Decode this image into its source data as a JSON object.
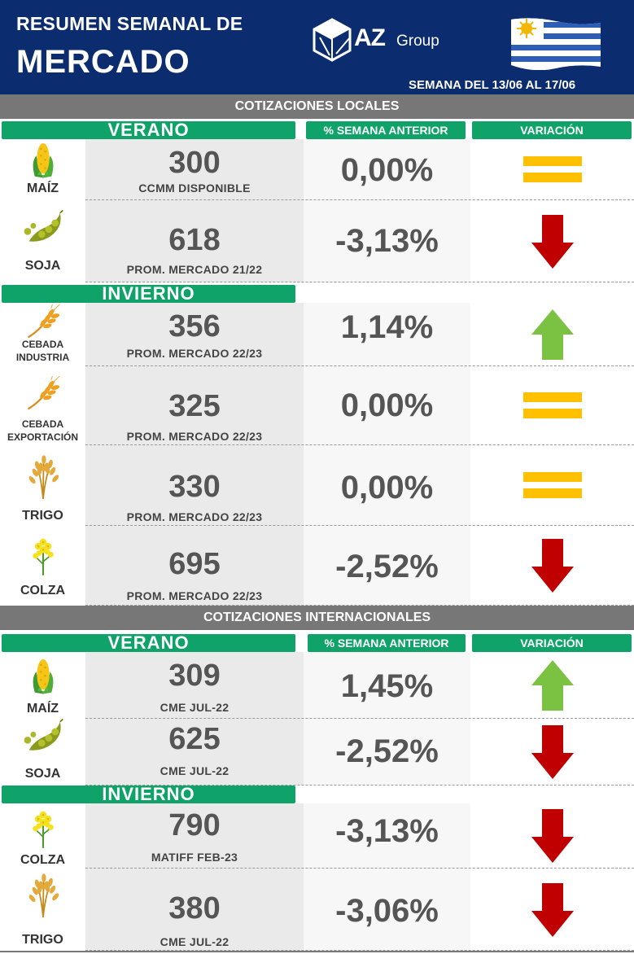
{
  "header": {
    "title_line1": "RESUMEN SEMANAL DE",
    "title_line2": "MERCADO",
    "logo_az": "AZ",
    "logo_group": "Group",
    "week": "SEMANA DEL  13/06 AL 17/06",
    "flag_icon": "uruguay-flag-icon"
  },
  "colors": {
    "navy": "#0b2c6f",
    "green": "#0fa36a",
    "gray_bar": "#777777",
    "up": "#7cc242",
    "down": "#c00000",
    "equal": "#ffc000"
  },
  "local": {
    "section_title": "COTIZACIONES LOCALES",
    "summer_label": "VERANO",
    "winter_label": "INVIERNO",
    "col_pct": "% SEMANA ANTERIOR",
    "col_var": "VARIACIÓN",
    "rows": [
      {
        "crop": "MAÍZ",
        "crop_line2": "",
        "icon": "corn-icon",
        "price": "300",
        "ref": "CCMM DISPONIBLE",
        "pct": "0,00%",
        "trend": "equal"
      },
      {
        "crop": "SOJA",
        "crop_line2": "",
        "icon": "soybean-icon",
        "price": "618",
        "ref": "PROM. MERCADO 21/22",
        "pct": "-3,13%",
        "trend": "down"
      },
      {
        "crop": "CEBADA",
        "crop_line2": "INDUSTRIA",
        "icon": "barley-icon",
        "price": "356",
        "ref": "PROM. MERCADO 22/23",
        "pct": "1,14%",
        "trend": "up"
      },
      {
        "crop": "CEBADA",
        "crop_line2": "EXPORTACIÓN",
        "icon": "barley-icon",
        "price": "325",
        "ref": "PROM. MERCADO 22/23",
        "pct": "0,00%",
        "trend": "equal"
      },
      {
        "crop": "TRIGO",
        "crop_line2": "",
        "icon": "wheat-icon",
        "price": "330",
        "ref": "PROM. MERCADO 22/23",
        "pct": "0,00%",
        "trend": "equal"
      },
      {
        "crop": "COLZA",
        "crop_line2": "",
        "icon": "canola-icon",
        "price": "695",
        "ref": "PROM. MERCADO 22/23",
        "pct": "-2,52%",
        "trend": "down"
      }
    ]
  },
  "intl": {
    "section_title": "COTIZACIONES INTERNACIONALES",
    "summer_label": "VERANO",
    "winter_label": "INVIERNO",
    "col_pct": "% SEMANA ANTERIOR",
    "col_var": "VARIACIÓN",
    "rows": [
      {
        "crop": "MAÍZ",
        "crop_line2": "",
        "icon": "corn-icon",
        "price": "309",
        "ref": "CME JUL-22",
        "pct": "1,45%",
        "trend": "up"
      },
      {
        "crop": "SOJA",
        "crop_line2": "",
        "icon": "soybean-icon",
        "price": "625",
        "ref": "CME JUL-22",
        "pct": "-2,52%",
        "trend": "down"
      },
      {
        "crop": "COLZA",
        "crop_line2": "",
        "icon": "canola-icon",
        "price": "790",
        "ref": "MATIFF FEB-23",
        "pct": "-3,13%",
        "trend": "down"
      },
      {
        "crop": "TRIGO",
        "crop_line2": "",
        "icon": "wheat-icon",
        "price": "380",
        "ref": "CME JUL-22",
        "pct": "-3,06%",
        "trend": "down"
      }
    ]
  }
}
